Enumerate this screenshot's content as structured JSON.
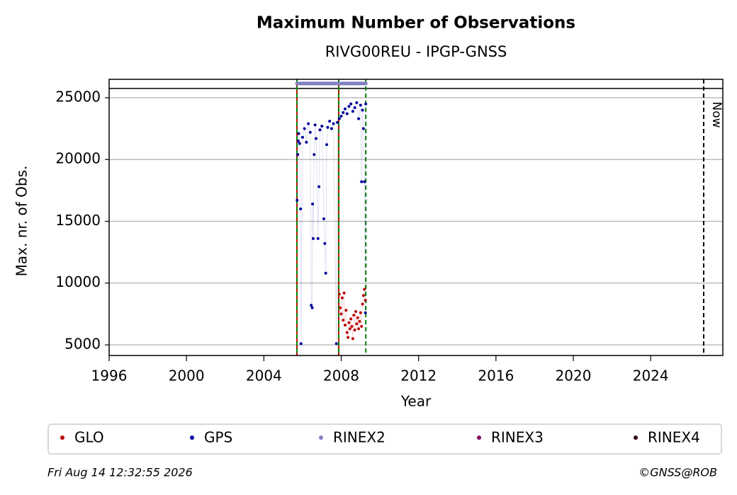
{
  "chart_data": {
    "type": "scatter",
    "title": "Maximum Number of Observations",
    "subtitle": "RIVG00REU - IPGP-GNSS",
    "x_label": "Year",
    "y_label": "Max. nr. of Obs.",
    "xlim": [
      1996,
      2027.73
    ],
    "ylim": [
      4140,
      26490
    ],
    "xticks": [
      1996,
      2000,
      2004,
      2008,
      2012,
      2016,
      2020,
      2024
    ],
    "yticks": [
      5000,
      10000,
      15000,
      20000,
      25000
    ],
    "grid": true,
    "hline": 25750,
    "vlines": [
      {
        "x": 2005.71,
        "color": "#cc0000",
        "style": "solid"
      },
      {
        "x": 2005.71,
        "color": "#008000",
        "style": "dashed"
      },
      {
        "x": 2007.87,
        "color": "#cc0000",
        "style": "solid"
      },
      {
        "x": 2007.87,
        "color": "#008000",
        "style": "dashed"
      },
      {
        "x": 2009.27,
        "color": "#008000",
        "style": "dashed"
      },
      {
        "x": 2026.74,
        "color": "#000000",
        "style": "dashed",
        "label": "Now"
      }
    ],
    "series": [
      {
        "name": "GLO",
        "color": "#bb0000",
        "x": [
          2007.9,
          2007.95,
          2008.0,
          2008.05,
          2008.1,
          2008.15,
          2008.2,
          2008.25,
          2008.3,
          2008.35,
          2008.4,
          2008.45,
          2008.5,
          2008.55,
          2008.6,
          2008.65,
          2008.7,
          2008.75,
          2008.8,
          2008.85,
          2008.9,
          2008.95,
          2009.0,
          2009.05,
          2009.1,
          2009.15,
          2009.2,
          2009.25
        ],
        "values": [
          9100,
          8000,
          7500,
          8800,
          7000,
          9200,
          6600,
          7800,
          6000,
          5600,
          6800,
          6300,
          7100,
          6500,
          5500,
          7400,
          6200,
          7700,
          6700,
          7200,
          6300,
          6900,
          7600,
          6500,
          8300,
          9000,
          9500,
          8600
        ]
      },
      {
        "name": "GPS",
        "color": "#000099",
        "x": [
          2005.72,
          2005.75,
          2005.78,
          2005.8,
          2005.85,
          2005.9,
          2005.92,
          2006.0,
          2006.1,
          2006.2,
          2006.3,
          2006.4,
          2006.45,
          2006.5,
          2006.52,
          2006.55,
          2006.6,
          2006.65,
          2006.7,
          2006.8,
          2006.85,
          2006.9,
          2007.0,
          2007.1,
          2007.15,
          2007.2,
          2007.25,
          2007.3,
          2007.4,
          2007.5,
          2007.6,
          2007.75,
          2007.8,
          2007.9,
          2008.0,
          2008.1,
          2008.2,
          2008.3,
          2008.4,
          2008.5,
          2008.6,
          2008.7,
          2008.8,
          2008.9,
          2009.0,
          2009.05,
          2009.1,
          2009.15,
          2009.2,
          2009.25,
          2009.27
        ],
        "values": [
          16700,
          20400,
          21500,
          22100,
          21300,
          16000,
          5100,
          21800,
          22500,
          21400,
          22900,
          22200,
          8200,
          8000,
          16400,
          13600,
          20400,
          22800,
          21700,
          13600,
          17800,
          22400,
          22700,
          15200,
          13200,
          10800,
          21200,
          22600,
          23100,
          22500,
          22900,
          5100,
          23000,
          23300,
          23500,
          23800,
          24100,
          23700,
          24300,
          24500,
          23900,
          24200,
          24600,
          23300,
          24400,
          18200,
          24000,
          22500,
          18200,
          7600,
          24500
        ]
      },
      {
        "name": "RINEX2",
        "color": "#8080c0",
        "x": [
          2005.71,
          2005.9,
          2006.1,
          2006.3,
          2006.5,
          2006.7,
          2006.9,
          2007.1,
          2007.3,
          2007.5,
          2007.7,
          2007.9,
          2008.1,
          2008.3,
          2008.5,
          2008.7,
          2008.9,
          2009.1,
          2009.27
        ],
        "values": [
          26150,
          26150,
          26150,
          26150,
          26150,
          26150,
          26150,
          26150,
          26150,
          26150,
          26150,
          26150,
          26150,
          26150,
          26150,
          26150,
          26150,
          26150,
          26150
        ]
      },
      {
        "name": "RINEX3",
        "color": "#800060",
        "x": [],
        "values": []
      },
      {
        "name": "RINEX4",
        "color": "#300010",
        "x": [],
        "values": []
      }
    ],
    "footer_left": "Fri Aug 14 12:32:55 2026",
    "footer_right": "©GNSS@ROB"
  }
}
